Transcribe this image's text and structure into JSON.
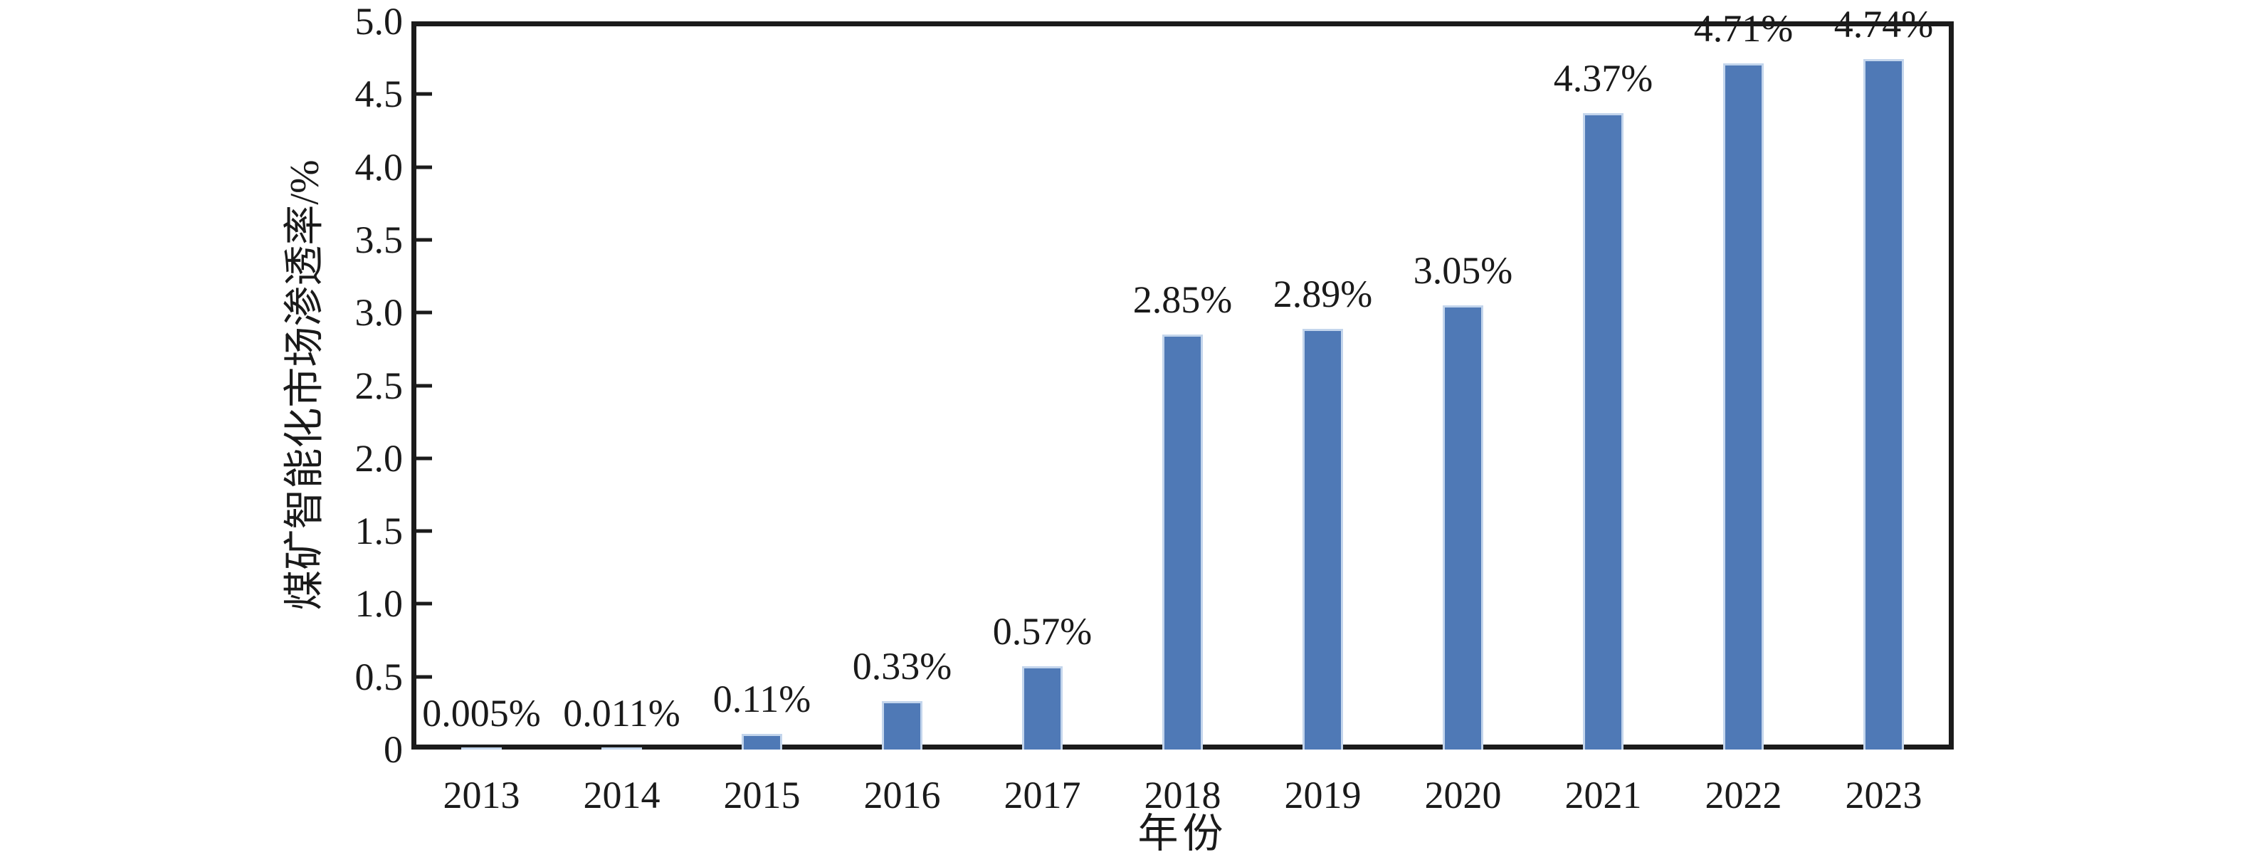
{
  "chart_data": {
    "type": "bar",
    "title": "",
    "categories": [
      "2013",
      "2014",
      "2015",
      "2016",
      "2017",
      "2018",
      "2019",
      "2020",
      "2021",
      "2022",
      "2023"
    ],
    "values": [
      0.005,
      0.011,
      0.11,
      0.33,
      0.57,
      2.85,
      2.89,
      3.05,
      4.37,
      4.71,
      4.74
    ],
    "value_labels": [
      "0.005%",
      "0.011%",
      "0.11%",
      "0.33%",
      "0.57%",
      "2.85%",
      "2.89%",
      "3.05%",
      "4.37%",
      "4.71%",
      "4.74%"
    ],
    "xlabel": "年份",
    "ylabel": "煤矿智能化市场渗透率/%",
    "ylim": [
      0,
      5.0
    ],
    "ytick_step": 0.5,
    "yticks": [
      "0",
      "0.5",
      "1.0",
      "1.5",
      "2.0",
      "2.5",
      "3.0",
      "3.5",
      "4.0",
      "4.5",
      "5.0"
    ],
    "grid": false,
    "legend": "none",
    "bar_count": 11,
    "colors": {
      "bar_fill": "#4f79b6",
      "bar_edge": "#c3d5ec",
      "axis": "#1b1b1b",
      "text": "#1a1a1a",
      "background": "#ffffff"
    }
  }
}
